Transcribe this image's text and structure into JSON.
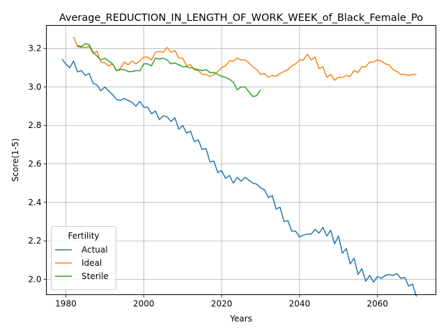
{
  "chart_data": {
    "type": "line",
    "title": "Average_REDUCTION_IN_LENGTH_OF_WORK_WEEK_of_Black_Female_Po",
    "xlabel": "Years",
    "ylabel": "Score(1-5)",
    "xlim": [
      1975,
      2075
    ],
    "ylim": [
      1.92,
      3.32
    ],
    "xticks": [
      1980,
      2000,
      2020,
      2040,
      2060
    ],
    "yticks": [
      2.0,
      2.2,
      2.4,
      2.6,
      2.8,
      3.0,
      3.2
    ],
    "ytick_labels": [
      "2.0",
      "2.2",
      "2.4",
      "2.6",
      "2.8",
      "3.0",
      "3.2"
    ],
    "grid": true,
    "legend": {
      "title": "Fertility",
      "placement": "lower-left"
    },
    "series": [
      {
        "name": "Actual",
        "color": "#1f77b4",
        "x_start": 1979,
        "values": [
          3.145,
          3.12,
          3.1,
          3.135,
          3.078,
          3.085,
          3.06,
          3.07,
          3.02,
          3.01,
          2.98,
          3.0,
          2.98,
          2.96,
          2.935,
          2.93,
          2.94,
          2.93,
          2.92,
          2.9,
          2.925,
          2.895,
          2.895,
          2.86,
          2.875,
          2.83,
          2.85,
          2.845,
          2.82,
          2.84,
          2.78,
          2.8,
          2.76,
          2.77,
          2.715,
          2.725,
          2.675,
          2.68,
          2.61,
          2.615,
          2.555,
          2.565,
          2.525,
          2.54,
          2.5,
          2.53,
          2.51,
          2.53,
          2.515,
          2.5,
          2.495,
          2.475,
          2.465,
          2.425,
          2.435,
          2.365,
          2.375,
          2.3,
          2.305,
          2.25,
          2.25,
          2.22,
          2.23,
          2.235,
          2.235,
          2.26,
          2.24,
          2.27,
          2.225,
          2.255,
          2.185,
          2.225,
          2.135,
          2.16,
          2.08,
          2.11,
          2.025,
          2.055,
          1.99,
          2.02,
          1.985,
          2.015,
          2.005,
          2.02,
          2.025,
          2.02,
          2.03,
          2.005,
          2.01,
          1.965,
          1.975,
          1.91
        ]
      },
      {
        "name": "Ideal",
        "color": "#ff7f0e",
        "x_start": 1982,
        "values": [
          3.26,
          3.21,
          3.205,
          3.205,
          3.21,
          3.175,
          3.185,
          3.13,
          3.125,
          3.11,
          3.12,
          3.085,
          3.095,
          3.13,
          3.115,
          3.135,
          3.12,
          3.135,
          3.155,
          3.155,
          3.14,
          3.18,
          3.185,
          3.18,
          3.205,
          3.18,
          3.19,
          3.15,
          3.15,
          3.11,
          3.115,
          3.09,
          3.085,
          3.065,
          3.065,
          3.055,
          3.065,
          3.08,
          3.1,
          3.11,
          3.135,
          3.135,
          3.15,
          3.14,
          3.14,
          3.125,
          3.105,
          3.09,
          3.065,
          3.07,
          3.05,
          3.06,
          3.055,
          3.07,
          3.08,
          3.09,
          3.11,
          3.12,
          3.14,
          3.14,
          3.17,
          3.14,
          3.155,
          3.095,
          3.105,
          3.05,
          3.065,
          3.035,
          3.05,
          3.05,
          3.06,
          3.055,
          3.085,
          3.075,
          3.105,
          3.105,
          3.13,
          3.13,
          3.14,
          3.135,
          3.12,
          3.115,
          3.09,
          3.08,
          3.065,
          3.065,
          3.06,
          3.065,
          3.065
        ]
      },
      {
        "name": "Sterile",
        "color": "#2ca02c",
        "x_start": 1983,
        "values": [
          3.215,
          3.21,
          3.225,
          3.22,
          3.18,
          3.16,
          3.14,
          3.15,
          3.135,
          3.12,
          3.085,
          3.09,
          3.09,
          3.08,
          3.08,
          3.085,
          3.085,
          3.12,
          3.12,
          3.11,
          3.15,
          3.145,
          3.15,
          3.14,
          3.12,
          3.125,
          3.115,
          3.105,
          3.105,
          3.1,
          3.095,
          3.09,
          3.085,
          3.09,
          3.075,
          3.075,
          3.065,
          3.055,
          3.05,
          3.04,
          3.025,
          2.985,
          3.0,
          3.0,
          2.975,
          2.95,
          2.955,
          2.985
        ]
      }
    ]
  }
}
